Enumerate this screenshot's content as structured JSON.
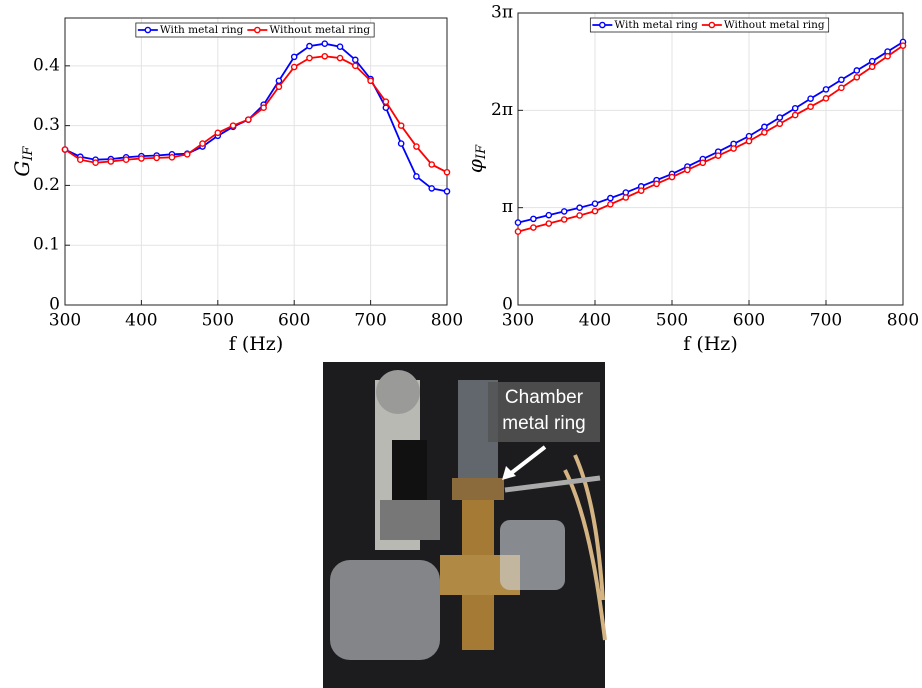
{
  "chart_data": [
    {
      "type": "line",
      "ylabel": {
        "text": "G",
        "subscript": "IF"
      },
      "xlabel": "f (Hz)",
      "x": [
        300,
        320,
        340,
        360,
        380,
        400,
        420,
        440,
        460,
        480,
        500,
        520,
        540,
        560,
        580,
        600,
        620,
        640,
        660,
        680,
        700,
        720,
        740,
        760,
        780,
        800
      ],
      "series": [
        {
          "name": "With metal ring",
          "color": "#0000ff",
          "values": [
            0.26,
            0.248,
            0.243,
            0.244,
            0.247,
            0.249,
            0.25,
            0.252,
            0.253,
            0.265,
            0.283,
            0.298,
            0.31,
            0.335,
            0.375,
            0.415,
            0.433,
            0.437,
            0.432,
            0.41,
            0.378,
            0.33,
            0.27,
            0.215,
            0.195,
            0.19
          ]
        },
        {
          "name": "Without metal ring",
          "color": "#ff0000",
          "values": [
            0.26,
            0.243,
            0.238,
            0.24,
            0.243,
            0.245,
            0.246,
            0.247,
            0.252,
            0.27,
            0.288,
            0.3,
            0.31,
            0.33,
            0.365,
            0.398,
            0.413,
            0.416,
            0.413,
            0.4,
            0.375,
            0.34,
            0.3,
            0.265,
            0.235,
            0.222
          ]
        }
      ],
      "xlim": [
        300,
        800
      ],
      "xticks": [
        300,
        400,
        500,
        600,
        700,
        800
      ],
      "ylim": [
        0,
        0.48
      ],
      "yticks": [
        0,
        0.1,
        0.2,
        0.3,
        0.4
      ],
      "grid": true,
      "legend": "upper center"
    },
    {
      "type": "line",
      "ylabel": {
        "text": "φ",
        "subscript": "IF"
      },
      "xlabel": "f (Hz)",
      "x": [
        300,
        320,
        340,
        360,
        380,
        400,
        420,
        440,
        460,
        480,
        500,
        520,
        540,
        560,
        580,
        600,
        620,
        640,
        660,
        680,
        700,
        720,
        740,
        760,
        780,
        800
      ],
      "series": [
        {
          "name": "With metal ring",
          "color": "#0000ff",
          "values": [
            2.66,
            2.78,
            2.9,
            3.02,
            3.14,
            3.27,
            3.45,
            3.63,
            3.83,
            4.03,
            4.23,
            4.47,
            4.71,
            4.95,
            5.2,
            5.45,
            5.75,
            6.05,
            6.35,
            6.66,
            6.96,
            7.27,
            7.57,
            7.87,
            8.18,
            8.49
          ]
        },
        {
          "name": "Without metal ring",
          "color": "#ff0000",
          "values": [
            2.37,
            2.5,
            2.63,
            2.76,
            2.89,
            3.03,
            3.25,
            3.47,
            3.69,
            3.91,
            4.13,
            4.36,
            4.59,
            4.82,
            5.05,
            5.29,
            5.57,
            5.85,
            6.13,
            6.4,
            6.67,
            7.01,
            7.35,
            7.69,
            8.03,
            8.37
          ]
        }
      ],
      "xlim": [
        300,
        800
      ],
      "xticks": [
        300,
        400,
        500,
        600,
        700,
        800
      ],
      "ylim": [
        0,
        9.42478
      ],
      "yticks": [
        0,
        {
          "value": 3.14159,
          "label": "π"
        },
        {
          "value": 6.28319,
          "label": "2π"
        },
        {
          "value": 9.42478,
          "label": "3π"
        }
      ],
      "grid": true,
      "legend": "upper center"
    }
  ],
  "photo": {
    "label": [
      "Chamber",
      "metal ring"
    ]
  }
}
